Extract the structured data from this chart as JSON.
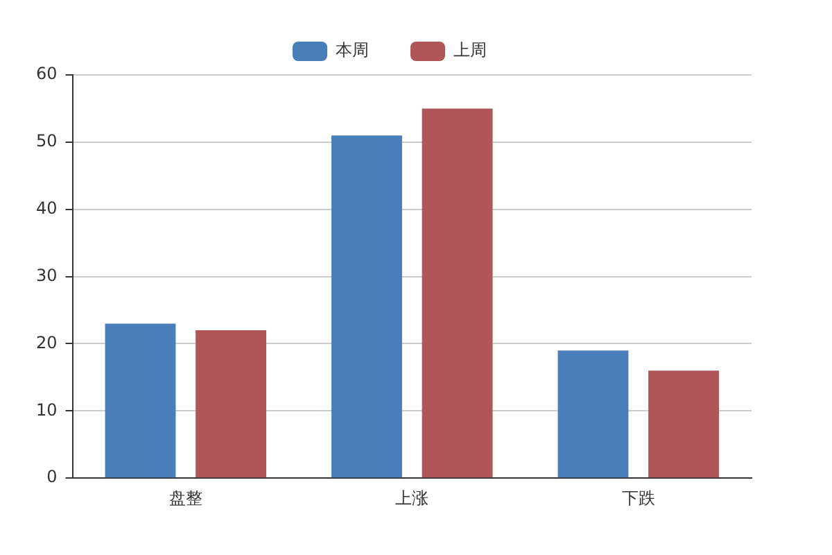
{
  "chart_data": {
    "type": "bar",
    "categories": [
      "盘整",
      "上涨",
      "下跌"
    ],
    "series": [
      {
        "name": "本周",
        "color": "#4a7ebb",
        "values": [
          23,
          51,
          19
        ]
      },
      {
        "name": "上周",
        "color": "#b05558",
        "values": [
          22,
          55,
          16
        ]
      }
    ],
    "ylim": [
      0,
      60
    ],
    "yticks": [
      0,
      10,
      20,
      30,
      40,
      50,
      60
    ],
    "grid": "y",
    "legend": "top"
  }
}
